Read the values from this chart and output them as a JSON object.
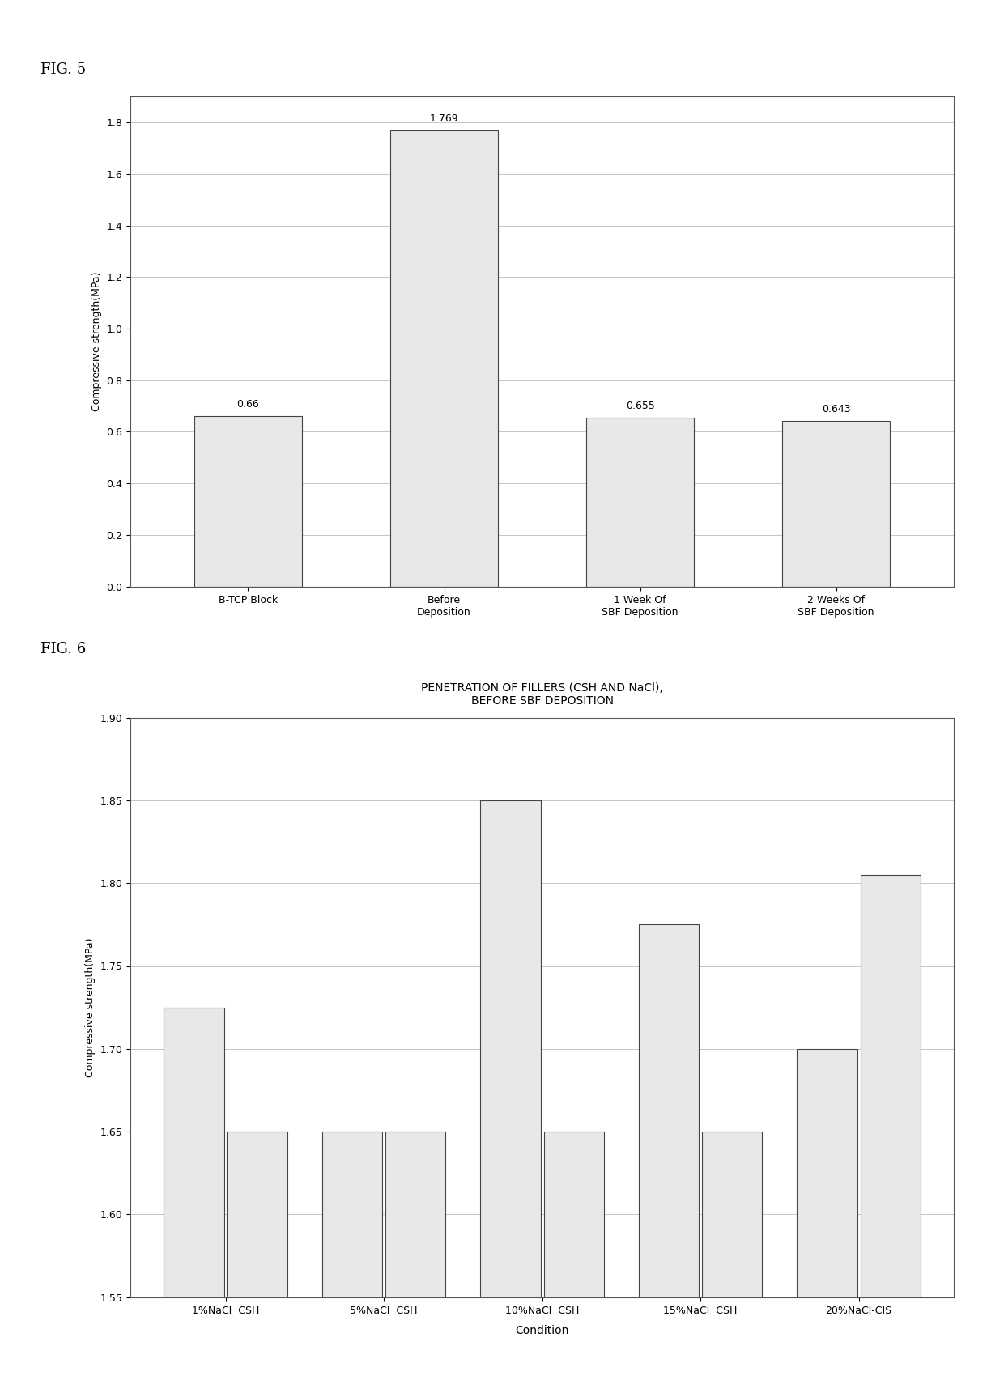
{
  "fig5": {
    "categories": [
      "B-TCP Block",
      "Before\nDeposition",
      "1 Week Of\nSBF Deposition",
      "2 Weeks Of\nSBF Deposition"
    ],
    "values": [
      0.66,
      1.769,
      0.655,
      0.643
    ],
    "bar_labels": [
      "0.66",
      "1.769",
      "0.655",
      "0.643"
    ],
    "ylabel": "Compressive strength(MPa)",
    "ylim": [
      0,
      1.9
    ],
    "yticks": [
      0,
      0.2,
      0.4,
      0.6,
      0.8,
      1.0,
      1.2,
      1.4,
      1.6,
      1.8
    ],
    "fig_label": "FIG. 5",
    "bar_color": "#e8e8e8",
    "bar_edgecolor": "#444444",
    "bar_width": 0.55
  },
  "fig6": {
    "title_line1": "PENETRATION OF FILLERS (CSH AND NaCl),",
    "title_line2": "BEFORE SBF DEPOSITION",
    "xlabel": "Condition",
    "ylabel": "Compressive strength(MPa)",
    "ylim": [
      1.55,
      1.9
    ],
    "yticks": [
      1.55,
      1.6,
      1.65,
      1.7,
      1.75,
      1.8,
      1.85,
      1.9
    ],
    "fig_label": "FIG. 6",
    "bar_color": "#e8e8e8",
    "bar_edgecolor": "#444444",
    "group_labels": [
      "1%NaCl  CSH",
      "5%NaCl  CSH",
      "10%NaCl  CSH",
      "15%NaCl  CSH",
      "20%NaCl-CIS"
    ],
    "bar1_values": [
      1.725,
      1.65,
      1.85,
      1.775,
      1.7
    ],
    "bar2_values": [
      1.65,
      1.65,
      1.65,
      1.65,
      1.805
    ],
    "bar_width": 0.38
  }
}
